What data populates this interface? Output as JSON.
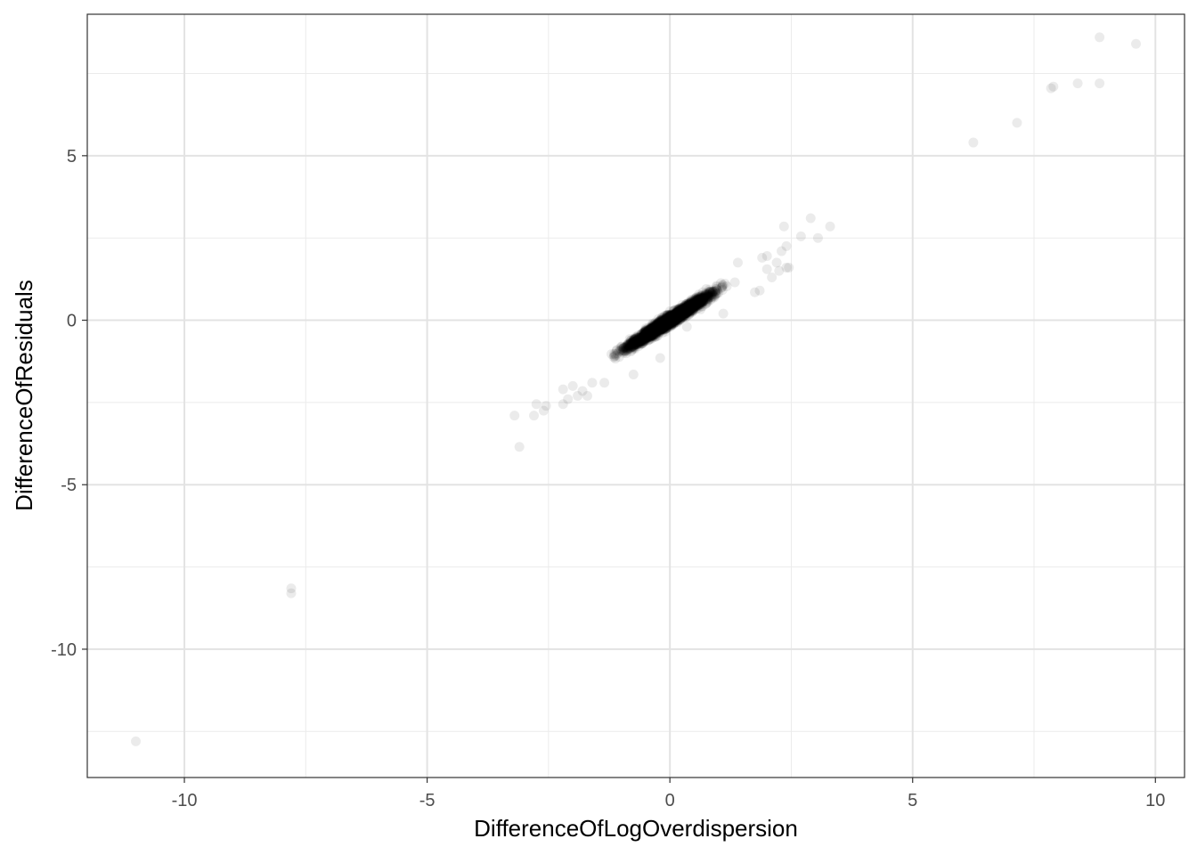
{
  "chart_data": {
    "type": "scatter",
    "title": "",
    "xlabel": "DifferenceOfLogOverdispersion",
    "ylabel": "DifferenceOfResiduals",
    "xlim": [
      -12,
      10.6
    ],
    "ylim": [
      -13.9,
      9.3
    ],
    "x_ticks": [
      -10,
      -5,
      0,
      5,
      10
    ],
    "y_ticks": [
      -10,
      -5,
      0,
      5
    ],
    "x_tick_labels": [
      "-10",
      "-5",
      "0",
      "5",
      "10"
    ],
    "y_tick_labels": [
      "-10",
      "-5",
      "0",
      "5"
    ],
    "x_minor_ticks": [
      -7.5,
      -2.5,
      2.5,
      7.5
    ],
    "y_minor_ticks": [
      -12.5,
      -7.5,
      -2.5,
      2.5,
      7.5
    ],
    "grid": true,
    "legend": "none",
    "point_color": "#000000",
    "point_alpha": 0.08,
    "dense_cluster": {
      "description_of_trend": "points concentrated along a line y ≈ 0.95x",
      "x_range": [
        -1.8,
        1.9
      ],
      "slope": 0.95,
      "spread": 0.12,
      "approx_count": 2500
    },
    "points": [
      {
        "x": -11.0,
        "y": -12.8
      },
      {
        "x": -7.8,
        "y": -8.15
      },
      {
        "x": -7.8,
        "y": -8.3
      },
      {
        "x": -3.2,
        "y": -2.9
      },
      {
        "x": -3.1,
        "y": -3.85
      },
      {
        "x": -2.8,
        "y": -2.9
      },
      {
        "x": -2.75,
        "y": -2.55
      },
      {
        "x": -2.6,
        "y": -2.75
      },
      {
        "x": -2.55,
        "y": -2.6
      },
      {
        "x": -2.2,
        "y": -2.55
      },
      {
        "x": -2.2,
        "y": -2.1
      },
      {
        "x": -2.1,
        "y": -2.4
      },
      {
        "x": -2.0,
        "y": -2.0
      },
      {
        "x": -1.9,
        "y": -2.3
      },
      {
        "x": -1.8,
        "y": -2.15
      },
      {
        "x": -1.6,
        "y": -1.9
      },
      {
        "x": -1.7,
        "y": -2.3
      },
      {
        "x": -1.35,
        "y": -1.9
      },
      {
        "x": -0.75,
        "y": -1.65
      },
      {
        "x": -0.2,
        "y": -1.15
      },
      {
        "x": -0.7,
        "y": -0.5
      },
      {
        "x": 0.35,
        "y": -0.2
      },
      {
        "x": 0.75,
        "y": 0.95
      },
      {
        "x": 1.1,
        "y": 0.2
      },
      {
        "x": 1.4,
        "y": 1.75
      },
      {
        "x": 1.75,
        "y": 0.85
      },
      {
        "x": 1.85,
        "y": 0.9
      },
      {
        "x": 1.9,
        "y": 1.9
      },
      {
        "x": 2.0,
        "y": 1.95
      },
      {
        "x": 2.0,
        "y": 1.55
      },
      {
        "x": 2.1,
        "y": 1.3
      },
      {
        "x": 2.2,
        "y": 1.75
      },
      {
        "x": 2.25,
        "y": 1.5
      },
      {
        "x": 2.3,
        "y": 2.1
      },
      {
        "x": 2.4,
        "y": 1.6
      },
      {
        "x": 2.4,
        "y": 2.25
      },
      {
        "x": 2.45,
        "y": 1.6
      },
      {
        "x": 2.35,
        "y": 2.85
      },
      {
        "x": 2.7,
        "y": 2.55
      },
      {
        "x": 2.9,
        "y": 3.1
      },
      {
        "x": 3.05,
        "y": 2.5
      },
      {
        "x": 3.3,
        "y": 2.85
      },
      {
        "x": 6.25,
        "y": 5.4
      },
      {
        "x": 7.15,
        "y": 6.0
      },
      {
        "x": 7.85,
        "y": 7.05
      },
      {
        "x": 7.9,
        "y": 7.1
      },
      {
        "x": 8.4,
        "y": 7.2
      },
      {
        "x": 8.85,
        "y": 7.2
      },
      {
        "x": 8.85,
        "y": 8.6
      },
      {
        "x": 9.6,
        "y": 8.4
      }
    ]
  }
}
